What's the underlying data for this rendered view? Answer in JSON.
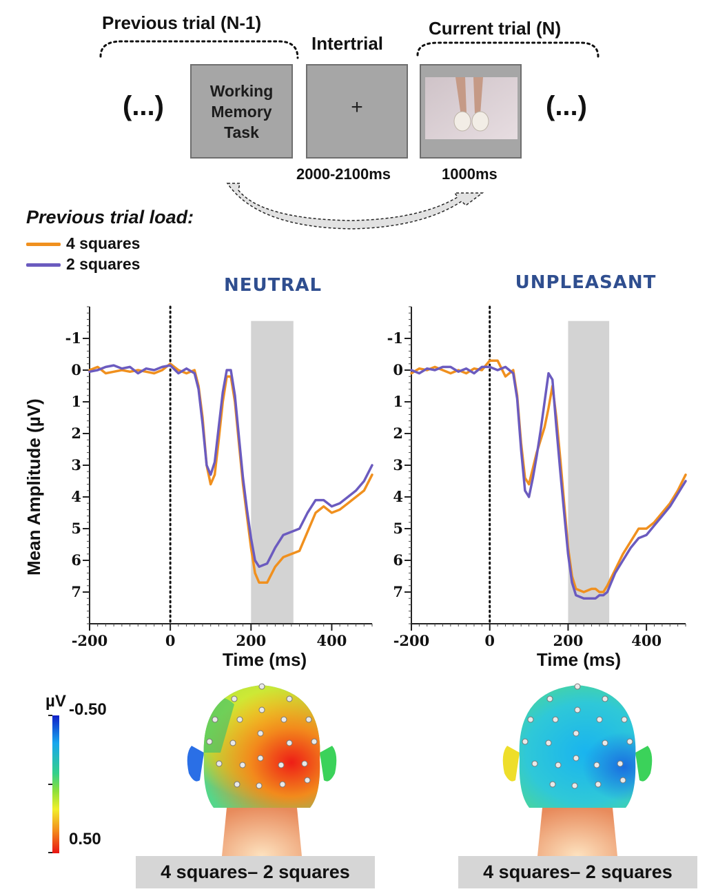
{
  "paradigm": {
    "previous_trial": "Previous trial (N-1)",
    "intertrial": "Intertrial",
    "current_trial": "Current trial (N)",
    "ellipsis": "(...)",
    "task_box": "Working Memory Task",
    "fixation": "+",
    "intertrial_duration": "2000-2100ms",
    "current_duration": "1000ms"
  },
  "legend": {
    "title": "Previous trial load:",
    "items": [
      {
        "label": "4 squares",
        "color": "#f0901e"
      },
      {
        "label": "2 squares",
        "color": "#6b5bbf"
      }
    ]
  },
  "chart_data": [
    {
      "type": "line",
      "title": "NEUTRAL",
      "xlabel": "Time (ms)",
      "ylabel": "Mean Amplitude (µV)",
      "xlim": [
        -200,
        500
      ],
      "ylim": [
        -2,
        8
      ],
      "y_inverted": true,
      "xticks": [
        -200,
        0,
        200,
        400
      ],
      "yticks": [
        -1,
        0,
        1,
        2,
        3,
        4,
        5,
        6,
        7
      ],
      "shaded_window": [
        200,
        305
      ],
      "stimulus_onset": 0,
      "series": [
        {
          "name": "4 squares",
          "color": "#f0901e",
          "x": [
            -200,
            -180,
            -160,
            -140,
            -120,
            -100,
            -80,
            -60,
            -40,
            -20,
            0,
            20,
            40,
            60,
            70,
            80,
            90,
            100,
            110,
            120,
            130,
            140,
            150,
            160,
            170,
            180,
            190,
            200,
            210,
            220,
            240,
            260,
            280,
            300,
            320,
            340,
            360,
            380,
            400,
            420,
            440,
            460,
            480,
            500
          ],
          "y": [
            0,
            -0.1,
            0.1,
            0.05,
            0,
            0.05,
            0,
            0.05,
            0.1,
            0,
            -0.2,
            0,
            0.1,
            0,
            0.5,
            1.5,
            3,
            3.6,
            3.3,
            2.2,
            1,
            0.2,
            0.2,
            1,
            2.3,
            3.6,
            4.6,
            5.6,
            6.4,
            6.7,
            6.7,
            6.2,
            5.9,
            5.8,
            5.7,
            5.1,
            4.5,
            4.3,
            4.5,
            4.4,
            4.2,
            4.0,
            3.8,
            3.3
          ]
        },
        {
          "name": "2 squares",
          "color": "#6b5bbf",
          "x": [
            -200,
            -180,
            -160,
            -140,
            -120,
            -100,
            -80,
            -60,
            -40,
            -20,
            0,
            20,
            40,
            60,
            70,
            80,
            90,
            100,
            110,
            120,
            130,
            140,
            150,
            160,
            170,
            180,
            190,
            200,
            210,
            220,
            240,
            260,
            280,
            300,
            320,
            340,
            360,
            380,
            400,
            420,
            440,
            460,
            480,
            500
          ],
          "y": [
            0.05,
            0,
            -0.1,
            -0.15,
            -0.05,
            -0.1,
            0.1,
            -0.05,
            0,
            -0.1,
            -0.15,
            0.1,
            -0.05,
            0.1,
            0.6,
            1.7,
            3,
            3.3,
            2.9,
            1.8,
            0.7,
            0,
            0,
            0.8,
            2.1,
            3.4,
            4.4,
            5.3,
            6,
            6.2,
            6.1,
            5.6,
            5.2,
            5.1,
            5.0,
            4.5,
            4.1,
            4.1,
            4.3,
            4.2,
            4.0,
            3.8,
            3.5,
            3.0
          ]
        }
      ]
    },
    {
      "type": "line",
      "title": "UNPLEASANT",
      "xlabel": "Time (ms)",
      "ylabel": "Mean Amplitude (µV)",
      "xlim": [
        -200,
        500
      ],
      "ylim": [
        -2,
        8
      ],
      "y_inverted": true,
      "xticks": [
        -200,
        0,
        200,
        400
      ],
      "yticks": [
        -1,
        0,
        1,
        2,
        3,
        4,
        5,
        6,
        7
      ],
      "shaded_window": [
        200,
        305
      ],
      "stimulus_onset": 0,
      "series": [
        {
          "name": "4 squares",
          "color": "#f0901e",
          "x": [
            -200,
            -180,
            -160,
            -140,
            -120,
            -100,
            -80,
            -60,
            -40,
            -20,
            0,
            20,
            40,
            60,
            70,
            80,
            90,
            100,
            110,
            120,
            130,
            140,
            150,
            160,
            170,
            180,
            190,
            200,
            210,
            220,
            240,
            260,
            270,
            280,
            290,
            300,
            320,
            340,
            360,
            380,
            400,
            420,
            440,
            460,
            480,
            500
          ],
          "y": [
            0.1,
            -0.05,
            0,
            -0.1,
            0,
            0.1,
            0,
            0.1,
            -0.05,
            0,
            -0.3,
            -0.3,
            0.2,
            0,
            0.8,
            2.3,
            3.4,
            3.6,
            3.1,
            2.6,
            2.2,
            1.8,
            1.2,
            0.5,
            1.5,
            2.8,
            4.2,
            5.6,
            6.5,
            6.9,
            7.0,
            6.9,
            6.9,
            7.0,
            7.0,
            6.8,
            6.3,
            5.8,
            5.4,
            5.0,
            5.0,
            4.8,
            4.5,
            4.2,
            3.8,
            3.3
          ]
        },
        {
          "name": "2 squares",
          "color": "#6b5bbf",
          "x": [
            -200,
            -180,
            -160,
            -140,
            -120,
            -100,
            -80,
            -60,
            -40,
            -20,
            0,
            20,
            40,
            60,
            70,
            80,
            90,
            100,
            110,
            120,
            130,
            140,
            150,
            160,
            170,
            180,
            190,
            200,
            210,
            220,
            240,
            260,
            270,
            280,
            290,
            300,
            320,
            340,
            360,
            380,
            400,
            420,
            440,
            460,
            480,
            500
          ],
          "y": [
            0,
            0.1,
            -0.05,
            0,
            -0.1,
            -0.1,
            0.05,
            -0.05,
            0.1,
            -0.1,
            -0.1,
            0,
            -0.1,
            0.1,
            0.9,
            2.5,
            3.8,
            4.0,
            3.4,
            2.7,
            1.9,
            1.0,
            0.1,
            0.3,
            1.8,
            3.2,
            4.5,
            5.8,
            6.7,
            7.1,
            7.2,
            7.2,
            7.2,
            7.1,
            7.1,
            7.0,
            6.4,
            6.0,
            5.6,
            5.3,
            5.2,
            4.9,
            4.6,
            4.3,
            3.9,
            3.5
          ]
        }
      ]
    }
  ],
  "colorbar": {
    "unit": "µV",
    "top_label": "-0.50",
    "bottom_label": "0.50"
  },
  "topomaps": [
    {
      "caption": "4 squares– 2 squares"
    },
    {
      "caption": "4 squares– 2 squares"
    }
  ]
}
